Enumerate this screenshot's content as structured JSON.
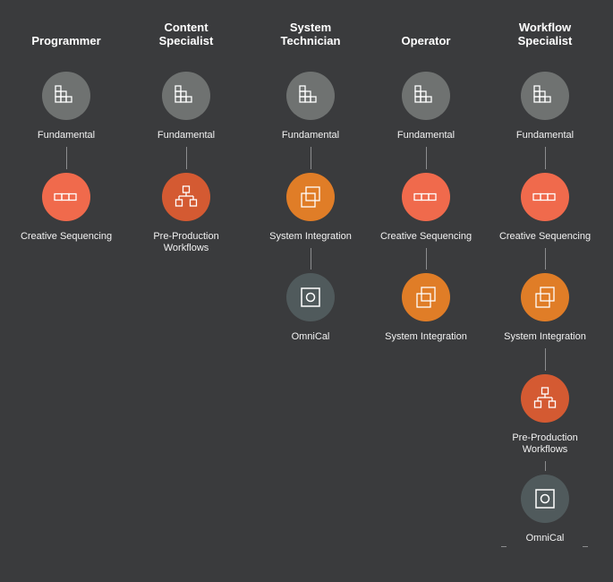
{
  "colors": {
    "background": "#3a3b3d",
    "fundamental": "#6f7271",
    "creative_sequencing": "#f06a4c",
    "system_integration": "#e07d27",
    "pre_production": "#d45a32",
    "omnical": "#505a5c",
    "connector": "#8c8d8f"
  },
  "roles": [
    {
      "title": "Programmer",
      "courses": [
        {
          "label": "Fundamental",
          "icon": "stairs-grid-icon",
          "kind": "fundamental"
        },
        {
          "label": "Creative Sequencing",
          "icon": "three-cells-icon",
          "kind": "creative_sequencing"
        }
      ]
    },
    {
      "title": "Content\nSpecialist",
      "courses": [
        {
          "label": "Fundamental",
          "icon": "stairs-grid-icon",
          "kind": "fundamental"
        },
        {
          "label": "Pre-Production\nWorkflows",
          "icon": "org-chart-icon",
          "kind": "pre_production"
        }
      ]
    },
    {
      "title": "System\nTechnician",
      "courses": [
        {
          "label": "Fundamental",
          "icon": "stairs-grid-icon",
          "kind": "fundamental"
        },
        {
          "label": "System Integration",
          "icon": "overlapping-squares-icon",
          "kind": "system_integration"
        },
        {
          "label": "OmniCal",
          "icon": "target-square-icon",
          "kind": "omnical"
        }
      ]
    },
    {
      "title": "Operator",
      "courses": [
        {
          "label": "Fundamental",
          "icon": "stairs-grid-icon",
          "kind": "fundamental"
        },
        {
          "label": "Creative Sequencing",
          "icon": "three-cells-icon",
          "kind": "creative_sequencing"
        },
        {
          "label": "System Integration",
          "icon": "overlapping-squares-icon",
          "kind": "system_integration"
        }
      ]
    },
    {
      "title": "Workflow\nSpecialist",
      "courses": [
        {
          "label": "Fundamental",
          "icon": "stairs-grid-icon",
          "kind": "fundamental"
        },
        {
          "label": "Creative Sequencing",
          "icon": "three-cells-icon",
          "kind": "creative_sequencing"
        },
        {
          "label": "System Integration",
          "icon": "overlapping-squares-icon",
          "kind": "system_integration"
        },
        {
          "label": "Pre-Production\nWorkflows",
          "icon": "org-chart-icon",
          "kind": "pre_production"
        },
        {
          "label": "OmniCal",
          "icon": "target-square-icon",
          "kind": "omnical"
        }
      ]
    }
  ]
}
